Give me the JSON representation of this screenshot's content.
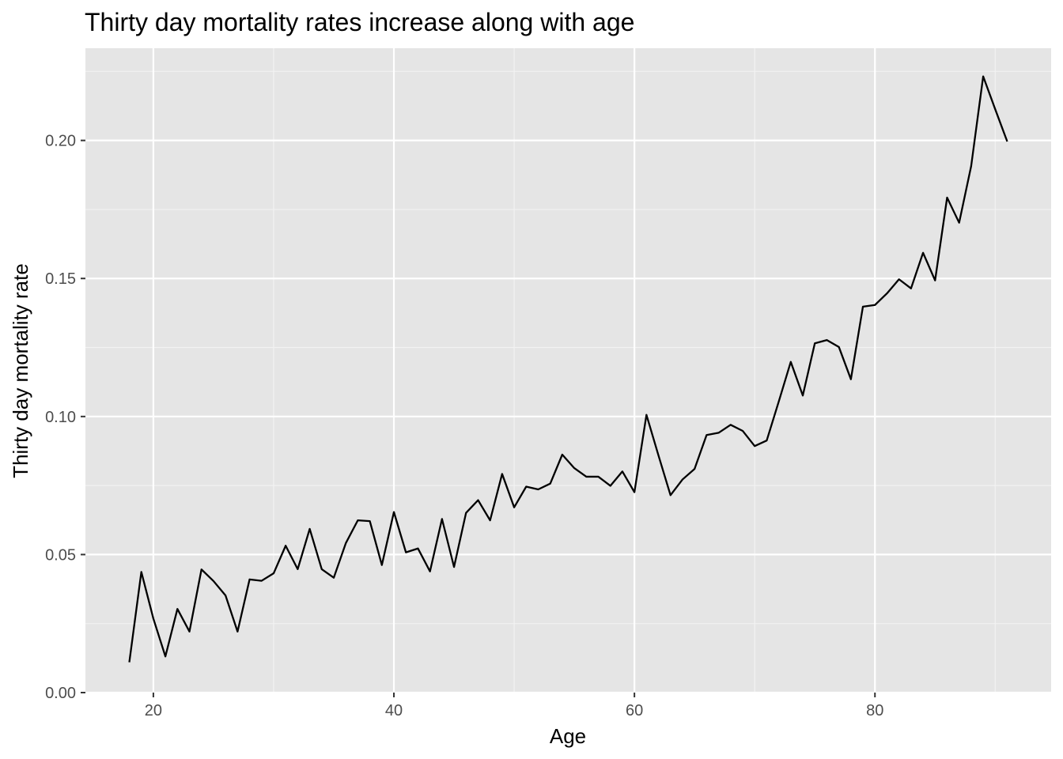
{
  "chart_data": {
    "type": "line",
    "title": "Thirty day mortality rates increase along with age",
    "xlabel": "Age",
    "ylabel": "Thirty day mortality rate",
    "xlim": [
      14.35,
      94.65
    ],
    "ylim": [
      0,
      0.2334
    ],
    "x_ticks": [
      20,
      40,
      60,
      80
    ],
    "x_tick_labels": [
      "20",
      "40",
      "60",
      "80"
    ],
    "y_ticks": [
      0,
      0.05,
      0.1,
      0.15,
      0.2
    ],
    "y_tick_labels": [
      "0.00",
      "0.05",
      "0.10",
      "0.15",
      "0.20"
    ],
    "grid": true,
    "panel_color": "#e5e5e5",
    "line_color": "#000000",
    "series": [
      {
        "x": [
          18,
          19,
          20,
          21,
          22,
          23,
          24,
          25,
          26,
          27,
          28,
          29,
          30,
          31,
          32,
          33,
          34,
          35,
          36,
          37,
          38,
          39,
          40,
          41,
          42,
          43,
          44,
          45,
          46,
          47,
          48,
          49,
          50,
          51,
          52,
          53,
          54,
          55,
          56,
          57,
          58,
          59,
          60,
          61,
          62,
          63,
          64,
          65,
          66,
          67,
          68,
          69,
          70,
          71,
          72,
          73,
          74,
          75,
          76,
          77,
          78,
          79,
          80,
          81,
          82,
          83,
          84,
          85,
          86,
          87,
          88,
          89,
          90,
          91
        ],
        "values": [
          0.011,
          0.0437,
          0.0268,
          0.0131,
          0.0303,
          0.0221,
          0.0446,
          0.0404,
          0.0352,
          0.0221,
          0.041,
          0.0405,
          0.0432,
          0.0532,
          0.0447,
          0.0593,
          0.0447,
          0.0416,
          0.0541,
          0.0624,
          0.0621,
          0.0462,
          0.0654,
          0.0508,
          0.0522,
          0.0439,
          0.0629,
          0.0455,
          0.0651,
          0.0697,
          0.0624,
          0.0792,
          0.0671,
          0.0746,
          0.0736,
          0.0757,
          0.0862,
          0.0813,
          0.0782,
          0.0782,
          0.0749,
          0.0801,
          0.0726,
          0.1006,
          0.0859,
          0.0715,
          0.0772,
          0.081,
          0.0933,
          0.0941,
          0.097,
          0.0948,
          0.0893,
          0.0913,
          0.1054,
          0.1198,
          0.1076,
          0.1265,
          0.1277,
          0.1252,
          0.1135,
          0.1398,
          0.1404,
          0.1446,
          0.1497,
          0.1464,
          0.1593,
          0.1493,
          0.1793,
          0.1702,
          0.1907,
          0.2232,
          0.2113,
          0.1996
        ]
      }
    ]
  }
}
